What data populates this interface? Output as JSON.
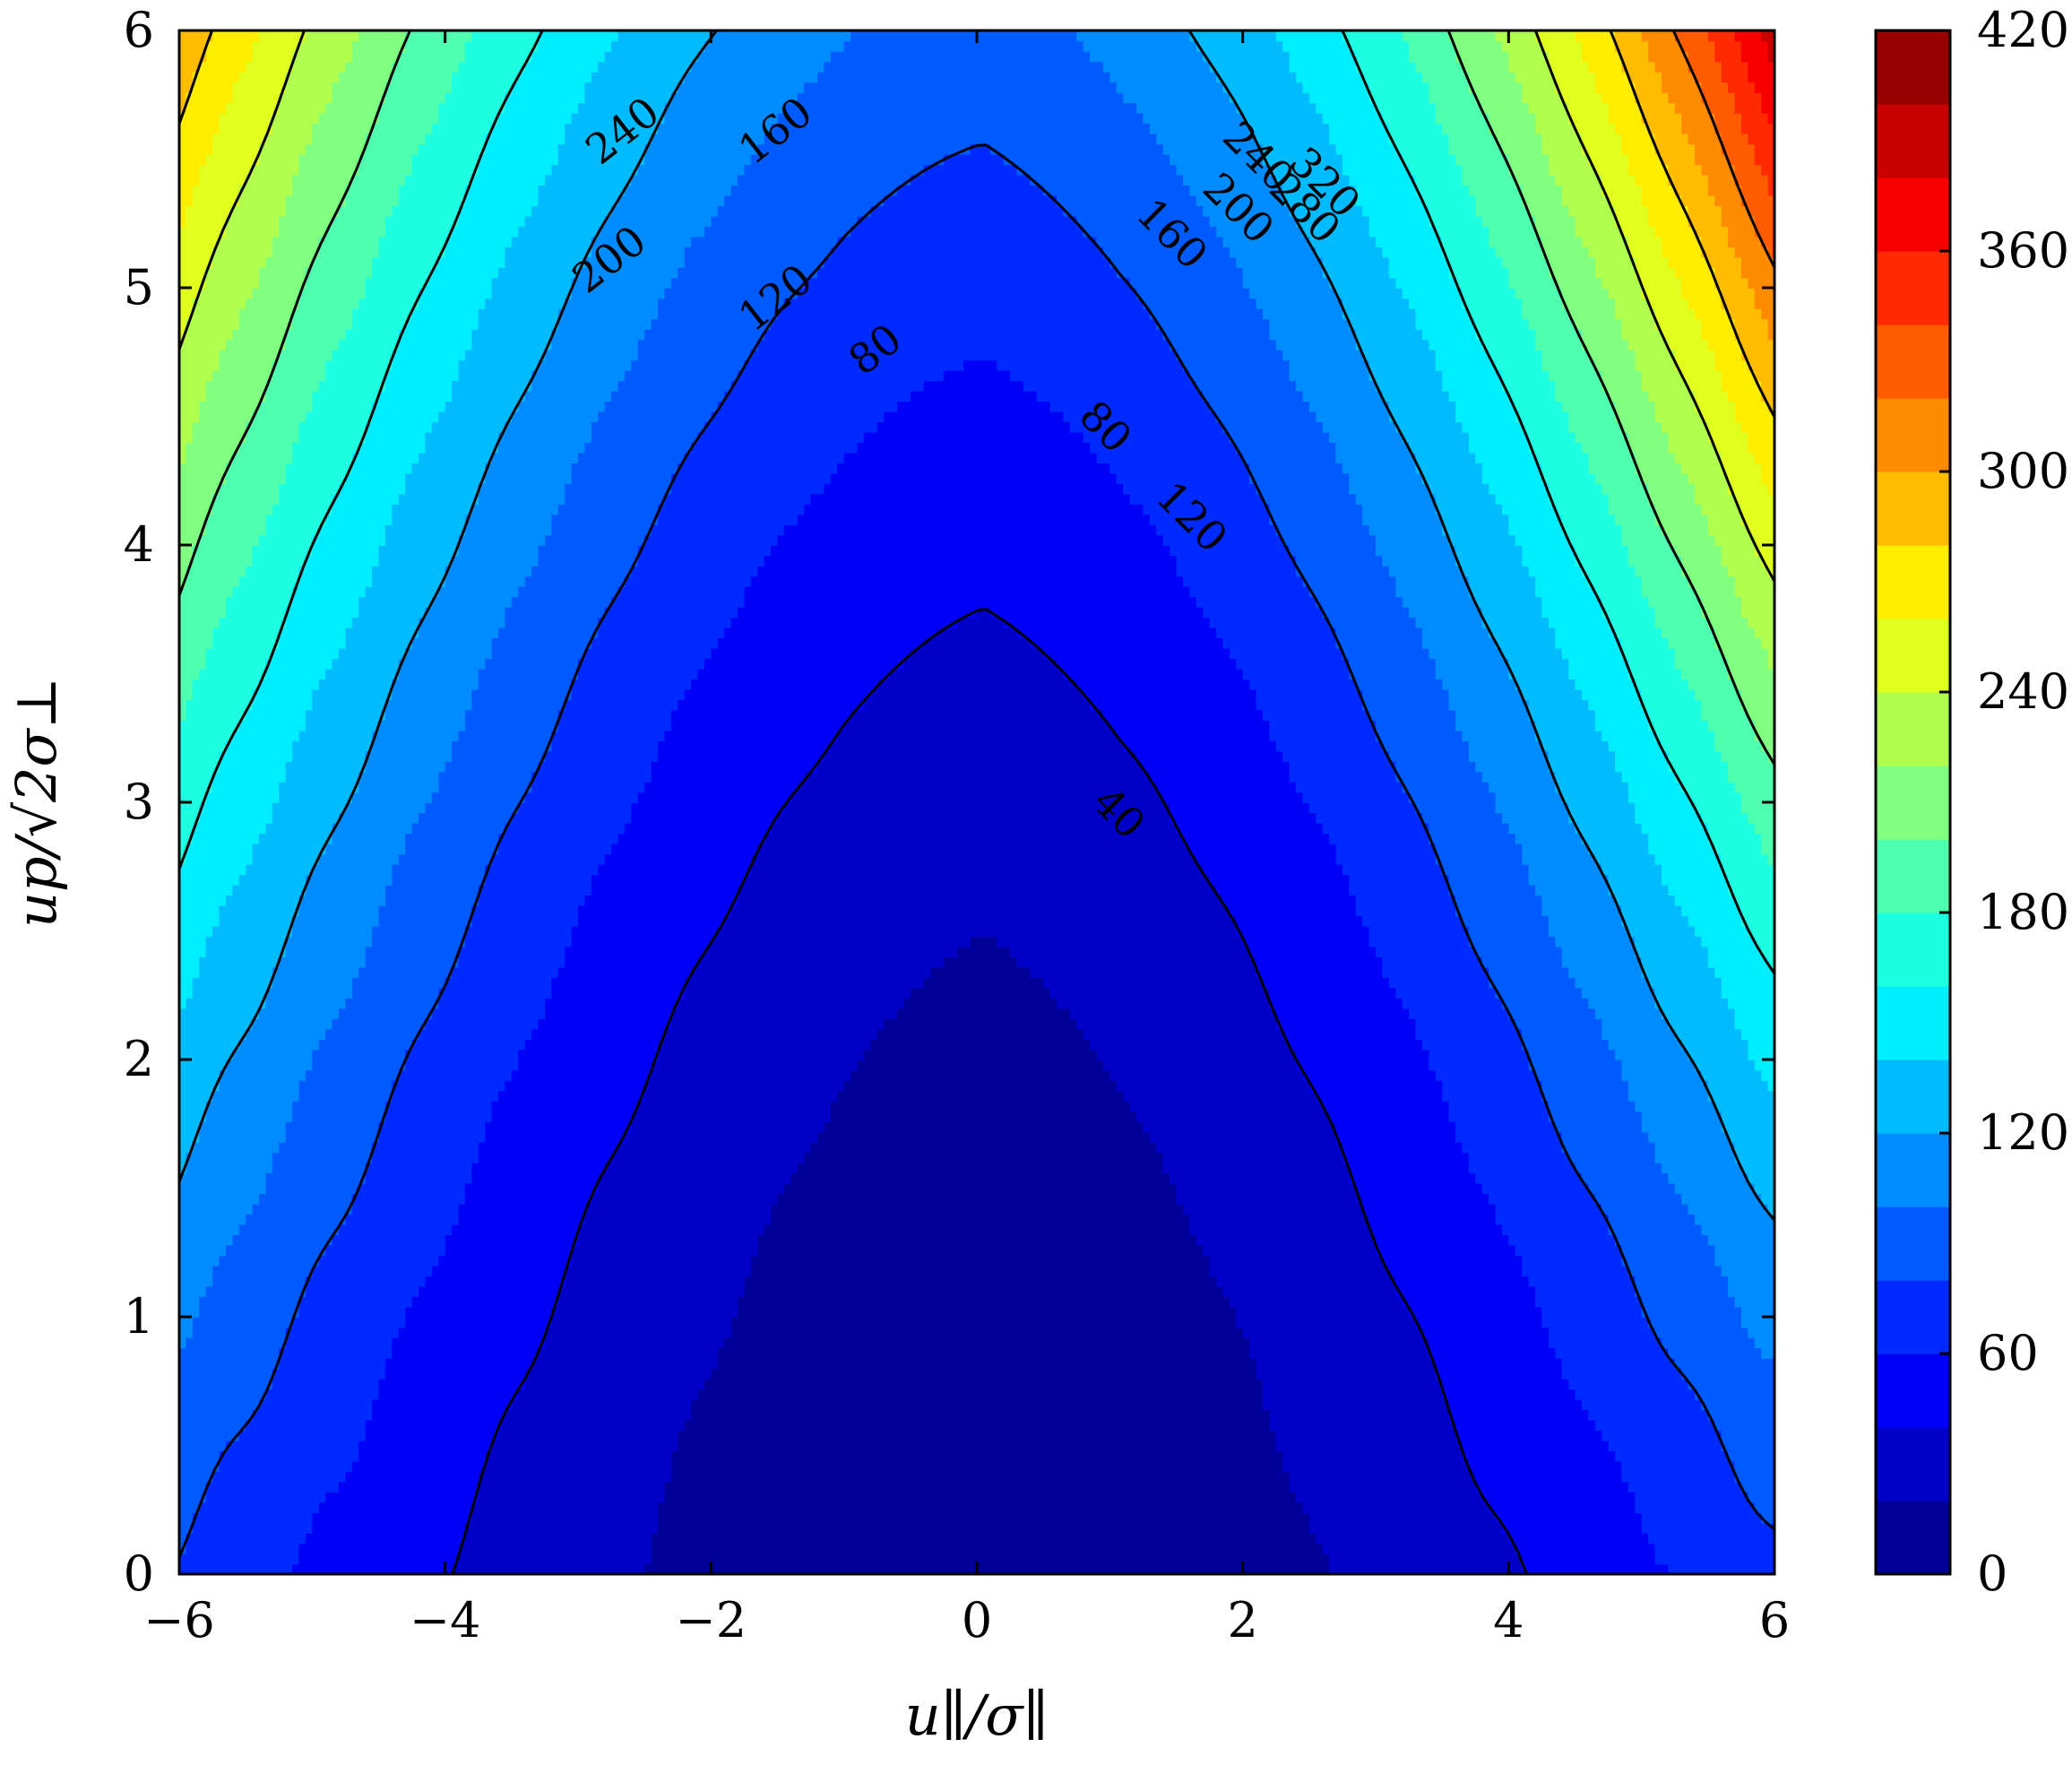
{
  "chart_data": {
    "type": "contour",
    "xlabel": "u∥/σ∥",
    "ylabel": "up/√2σ⊥",
    "xlim": [
      -6,
      6
    ],
    "ylim": [
      0,
      6
    ],
    "x_ticks": [
      "−6",
      "−4",
      "−2",
      "0",
      "2",
      "4",
      "6"
    ],
    "y_ticks": [
      "0",
      "1",
      "2",
      "3",
      "4",
      "5",
      "6"
    ],
    "colorbar": {
      "range": [
        0,
        420
      ],
      "step": 20,
      "tick_labels": [
        "0",
        "60",
        "120",
        "180",
        "240",
        "300",
        "360",
        "420"
      ],
      "colormap": "jet"
    },
    "contour_line_levels": [
      40,
      80,
      120,
      160,
      200,
      240,
      280,
      320
    ],
    "contour_labels": [
      {
        "text": "40",
        "x": 1.05,
        "y": 2.95
      },
      {
        "text": "80",
        "x": -0.75,
        "y": 4.75
      },
      {
        "text": "80",
        "x": 0.95,
        "y": 4.45
      },
      {
        "text": "120",
        "x": -1.5,
        "y": 4.95
      },
      {
        "text": "120",
        "x": 1.6,
        "y": 4.1
      },
      {
        "text": "160",
        "x": -1.5,
        "y": 5.6
      },
      {
        "text": "160",
        "x": 1.45,
        "y": 5.2
      },
      {
        "text": "200",
        "x": -2.75,
        "y": 5.1
      },
      {
        "text": "200",
        "x": 1.95,
        "y": 5.3
      },
      {
        "text": "240",
        "x": -2.65,
        "y": 5.6
      },
      {
        "text": "240",
        "x": 2.1,
        "y": 5.5
      },
      {
        "text": "280",
        "x": 2.45,
        "y": 5.3
      },
      {
        "text": "320",
        "x": 2.6,
        "y": 5.4
      }
    ],
    "field_model": "approx |u∥|^2 + up^2 scaled so corner (6,6) ≈ 420; asymmetric slight skew"
  }
}
